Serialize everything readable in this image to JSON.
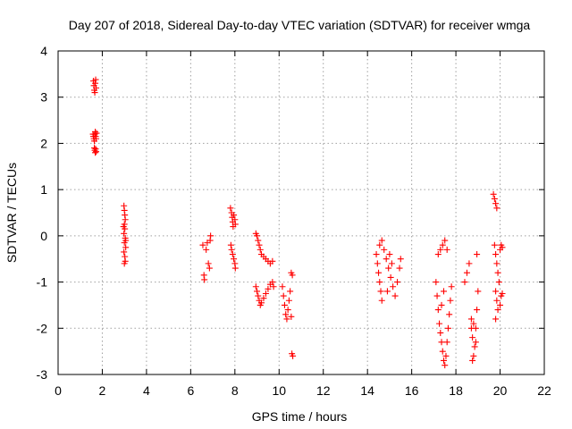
{
  "chart_data": {
    "type": "scatter",
    "title": "Day 207 of 2018, Sidereal Day-to-day VTEC variation (SDTVAR) for receiver wmga",
    "xlabel": "GPS time / hours",
    "ylabel": "SDTVAR / TECUs",
    "xlim": [
      0,
      22
    ],
    "ylim": [
      -3,
      4
    ],
    "xticks": [
      0,
      2,
      4,
      6,
      8,
      10,
      12,
      14,
      16,
      18,
      20,
      22
    ],
    "yticks": [
      -3,
      -2,
      -1,
      0,
      1,
      2,
      3,
      4
    ],
    "xtick_labels": [
      "0",
      "2",
      "4",
      "6",
      "8",
      "10",
      "12",
      "14",
      "16",
      "18",
      "20",
      "22"
    ],
    "ytick_labels": [
      "-3",
      "-2",
      "-1",
      "0",
      "1",
      "2",
      "3",
      "4"
    ],
    "grid": true,
    "marker": "+",
    "marker_color": "#ff0000",
    "series": [
      {
        "name": "SDTVAR",
        "points": [
          [
            1.6,
            3.35
          ],
          [
            1.62,
            3.25
          ],
          [
            1.64,
            3.15
          ],
          [
            1.66,
            3.1
          ],
          [
            1.68,
            3.3
          ],
          [
            1.7,
            3.38
          ],
          [
            1.72,
            3.2
          ],
          [
            1.58,
            2.2
          ],
          [
            1.6,
            2.15
          ],
          [
            1.62,
            2.1
          ],
          [
            1.64,
            2.05
          ],
          [
            1.66,
            2.2
          ],
          [
            1.68,
            2.25
          ],
          [
            1.7,
            2.15
          ],
          [
            1.72,
            2.1
          ],
          [
            1.74,
            2.22
          ],
          [
            1.64,
            1.9
          ],
          [
            1.66,
            1.85
          ],
          [
            1.68,
            1.8
          ],
          [
            1.7,
            1.88
          ],
          [
            1.72,
            1.82
          ],
          [
            2.98,
            0.65
          ],
          [
            3.0,
            0.55
          ],
          [
            3.02,
            0.45
          ],
          [
            3.04,
            0.35
          ],
          [
            3.0,
            0.25
          ],
          [
            3.02,
            0.15
          ],
          [
            2.98,
            0.05
          ],
          [
            3.04,
            -0.05
          ],
          [
            3.0,
            -0.15
          ],
          [
            3.06,
            -0.25
          ],
          [
            2.98,
            -0.35
          ],
          [
            3.02,
            -0.45
          ],
          [
            3.04,
            -0.55
          ],
          [
            3.0,
            -0.6
          ],
          [
            3.06,
            -0.1
          ],
          [
            2.96,
            0.2
          ],
          [
            6.55,
            -0.2
          ],
          [
            6.6,
            -0.85
          ],
          [
            6.62,
            -0.95
          ],
          [
            6.7,
            -0.3
          ],
          [
            6.75,
            -0.15
          ],
          [
            6.8,
            -0.6
          ],
          [
            6.85,
            -0.7
          ],
          [
            6.88,
            -0.1
          ],
          [
            6.9,
            0.0
          ],
          [
            7.8,
            0.6
          ],
          [
            7.85,
            0.5
          ],
          [
            7.88,
            0.4
          ],
          [
            7.9,
            0.3
          ],
          [
            7.92,
            0.2
          ],
          [
            7.95,
            0.45
          ],
          [
            8.0,
            0.35
          ],
          [
            8.02,
            0.25
          ],
          [
            7.82,
            -0.2
          ],
          [
            7.85,
            -0.3
          ],
          [
            7.9,
            -0.4
          ],
          [
            7.95,
            -0.5
          ],
          [
            8.0,
            -0.6
          ],
          [
            8.02,
            -0.7
          ],
          [
            8.95,
            0.05
          ],
          [
            9.0,
            0.0
          ],
          [
            9.05,
            -0.1
          ],
          [
            9.1,
            -0.2
          ],
          [
            9.15,
            -0.3
          ],
          [
            9.2,
            -0.4
          ],
          [
            9.3,
            -0.45
          ],
          [
            9.4,
            -0.5
          ],
          [
            9.5,
            -0.55
          ],
          [
            9.6,
            -0.6
          ],
          [
            9.7,
            -0.55
          ],
          [
            8.95,
            -1.1
          ],
          [
            9.0,
            -1.2
          ],
          [
            9.05,
            -1.3
          ],
          [
            9.1,
            -1.4
          ],
          [
            9.15,
            -1.5
          ],
          [
            9.2,
            -1.45
          ],
          [
            9.3,
            -1.35
          ],
          [
            9.4,
            -1.25
          ],
          [
            9.5,
            -1.15
          ],
          [
            9.6,
            -1.05
          ],
          [
            9.7,
            -1.0
          ],
          [
            9.75,
            -1.1
          ],
          [
            10.15,
            -1.1
          ],
          [
            10.2,
            -1.3
          ],
          [
            10.25,
            -1.5
          ],
          [
            10.3,
            -1.7
          ],
          [
            10.35,
            -1.8
          ],
          [
            10.4,
            -1.6
          ],
          [
            10.45,
            -1.4
          ],
          [
            10.5,
            -1.2
          ],
          [
            10.55,
            -0.8
          ],
          [
            10.6,
            -0.85
          ],
          [
            10.58,
            -2.55
          ],
          [
            10.62,
            -2.6
          ],
          [
            10.55,
            -1.75
          ],
          [
            14.4,
            -0.4
          ],
          [
            14.45,
            -0.6
          ],
          [
            14.5,
            -0.8
          ],
          [
            14.55,
            -1.0
          ],
          [
            14.6,
            -1.2
          ],
          [
            14.65,
            -1.4
          ],
          [
            14.55,
            -0.2
          ],
          [
            14.65,
            -0.1
          ],
          [
            14.75,
            -0.3
          ],
          [
            14.85,
            -0.5
          ],
          [
            14.95,
            -0.7
          ],
          [
            15.05,
            -0.9
          ],
          [
            15.15,
            -1.1
          ],
          [
            15.25,
            -1.3
          ],
          [
            15.35,
            -1.0
          ],
          [
            15.45,
            -0.7
          ],
          [
            15.5,
            -0.5
          ],
          [
            15.0,
            -0.4
          ],
          [
            14.9,
            -1.2
          ],
          [
            15.1,
            -0.6
          ],
          [
            17.1,
            -1.0
          ],
          [
            17.15,
            -1.3
          ],
          [
            17.2,
            -1.6
          ],
          [
            17.25,
            -1.9
          ],
          [
            17.3,
            -2.1
          ],
          [
            17.35,
            -2.3
          ],
          [
            17.4,
            -2.5
          ],
          [
            17.45,
            -2.7
          ],
          [
            17.5,
            -2.8
          ],
          [
            17.55,
            -2.6
          ],
          [
            17.6,
            -2.3
          ],
          [
            17.65,
            -2.0
          ],
          [
            17.7,
            -1.7
          ],
          [
            17.75,
            -1.4
          ],
          [
            17.8,
            -1.1
          ],
          [
            17.2,
            -0.4
          ],
          [
            17.3,
            -0.3
          ],
          [
            17.4,
            -0.2
          ],
          [
            17.5,
            -0.1
          ],
          [
            17.6,
            -0.3
          ],
          [
            17.35,
            -1.5
          ],
          [
            17.45,
            -1.2
          ],
          [
            18.4,
            -1.0
          ],
          [
            18.5,
            -0.8
          ],
          [
            18.6,
            -0.6
          ],
          [
            18.7,
            -1.8
          ],
          [
            18.75,
            -2.2
          ],
          [
            18.8,
            -2.6
          ],
          [
            18.85,
            -2.4
          ],
          [
            18.9,
            -2.0
          ],
          [
            18.95,
            -1.6
          ],
          [
            19.0,
            -1.2
          ],
          [
            18.95,
            -0.4
          ],
          [
            18.7,
            -2.0
          ],
          [
            18.8,
            -1.9
          ],
          [
            18.75,
            -2.7
          ],
          [
            18.9,
            -2.3
          ],
          [
            19.7,
            0.9
          ],
          [
            19.75,
            0.8
          ],
          [
            19.8,
            0.7
          ],
          [
            19.85,
            0.6
          ],
          [
            19.75,
            -0.2
          ],
          [
            19.8,
            -0.4
          ],
          [
            19.85,
            -0.6
          ],
          [
            19.9,
            -0.8
          ],
          [
            19.95,
            -1.0
          ],
          [
            20.0,
            -0.3
          ],
          [
            20.05,
            -0.2
          ],
          [
            20.1,
            -0.25
          ],
          [
            19.8,
            -1.2
          ],
          [
            19.85,
            -1.4
          ],
          [
            19.9,
            -1.6
          ],
          [
            19.8,
            -1.8
          ],
          [
            20.0,
            -1.5
          ],
          [
            20.05,
            -1.3
          ],
          [
            20.1,
            -1.25
          ]
        ]
      }
    ]
  }
}
